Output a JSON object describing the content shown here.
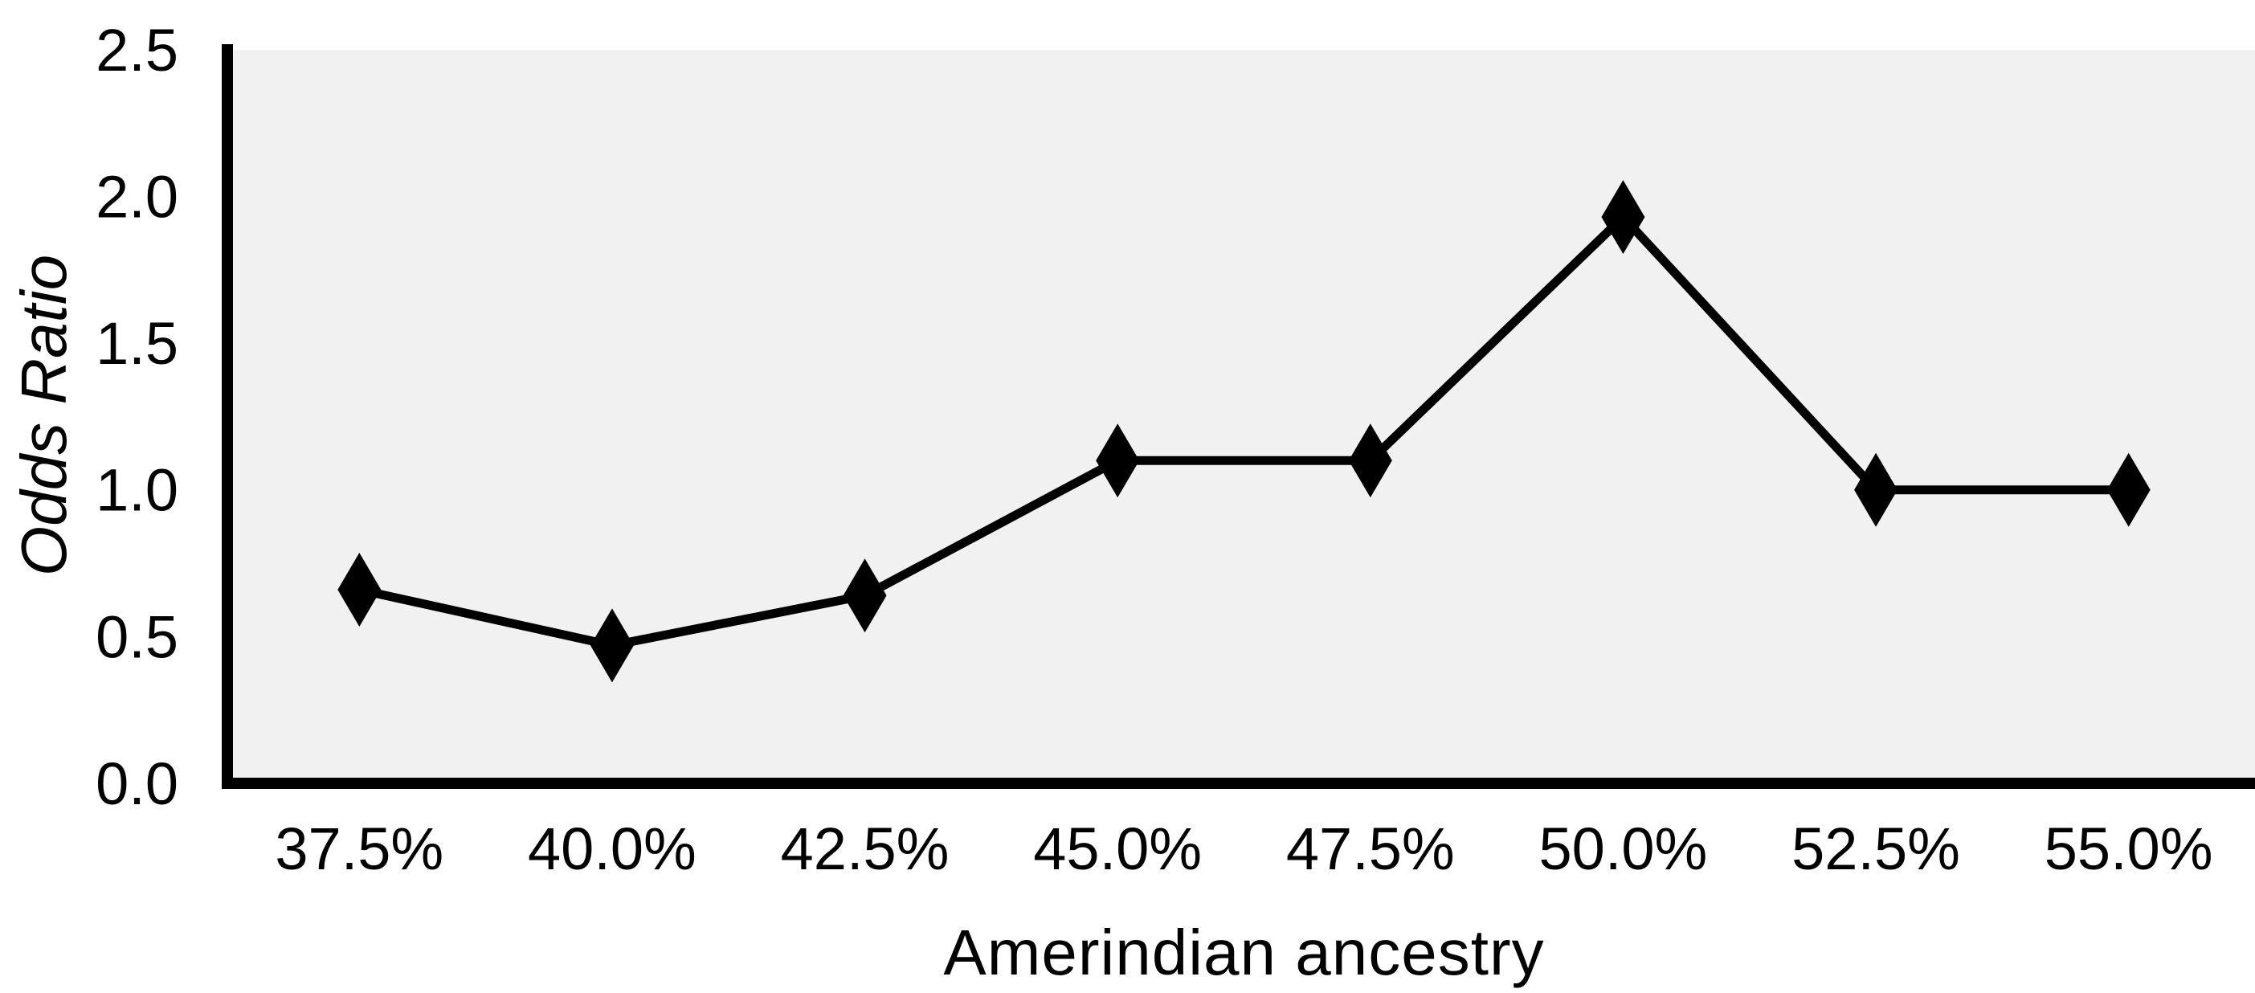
{
  "figure": {
    "background": "#ffffff",
    "plot_background": "#f1f1f1",
    "axis_color": "#000000",
    "line_color": "#000000",
    "marker_color": "#000000"
  },
  "chart_data": {
    "type": "line",
    "title": "",
    "xlabel": "Amerindian ancestry",
    "ylabel": "Odds Ratio",
    "categories": [
      "37.5%",
      "40.0%",
      "42.5%",
      "45.0%",
      "47.5%",
      "50.0%",
      "52.5%",
      "55.0%"
    ],
    "series": [
      {
        "name": "Odds Ratio",
        "values": [
          0.66,
          0.47,
          0.64,
          1.1,
          1.1,
          1.93,
          1.0,
          1.0
        ]
      }
    ],
    "ylim": [
      0,
      2.5
    ],
    "yticks": [
      0.0,
      0.5,
      1.0,
      1.5,
      2.0,
      2.5
    ],
    "ytick_labels": [
      "0.0",
      "0.5",
      "1.0",
      "1.5",
      "2.0",
      "2.5"
    ],
    "marker": "diamond",
    "grid": false,
    "legend": "none"
  }
}
